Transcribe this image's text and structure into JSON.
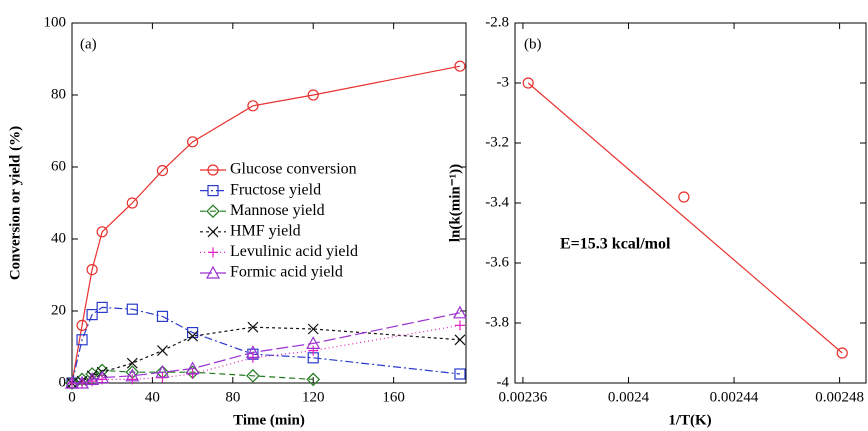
{
  "chart_data": [
    {
      "type": "line",
      "title": "(a)",
      "xlabel": "Time (min)",
      "ylabel": "Conversion or yield (%)",
      "xlim": [
        0,
        196
      ],
      "xticks": [
        0,
        40,
        80,
        120,
        160
      ],
      "ylim": [
        0,
        100
      ],
      "yticks": [
        0,
        20,
        40,
        60,
        80,
        100
      ],
      "series": [
        {
          "name": "Glucose conversion",
          "color": "#e8312e",
          "marker": "circle",
          "dash": "none",
          "x": [
            0,
            5,
            10,
            15,
            30,
            45,
            60,
            90,
            120,
            193
          ],
          "values": [
            0,
            16,
            31.5,
            42,
            50,
            59,
            67,
            77,
            80,
            88
          ]
        },
        {
          "name": "Fructose yield",
          "color": "#2b3bcc",
          "marker": "square",
          "dash": "8 3 2 3",
          "x": [
            0,
            5,
            10,
            15,
            30,
            45,
            60,
            90,
            120,
            193
          ],
          "values": [
            0,
            12,
            19,
            21,
            20.5,
            18.5,
            14,
            8,
            7,
            2.5
          ]
        },
        {
          "name": "Mannose yield",
          "color": "#1f7a1f",
          "marker": "diamond",
          "dash": "6 4",
          "x": [
            0,
            5,
            10,
            15,
            30,
            45,
            60,
            90,
            120
          ],
          "values": [
            0,
            1,
            2.5,
            3.5,
            3,
            3,
            3,
            2,
            1
          ]
        },
        {
          "name": "HMF yield",
          "color": "#111111",
          "marker": "cross",
          "dash": "3 3",
          "x": [
            0,
            5,
            10,
            15,
            30,
            45,
            60,
            90,
            120,
            193
          ],
          "values": [
            0,
            0.5,
            2,
            3,
            5.5,
            9,
            13,
            15.5,
            15,
            12
          ]
        },
        {
          "name": "Levulinic acid yield",
          "color": "#e020c0",
          "marker": "plus",
          "dash": "1 3",
          "x": [
            0,
            5,
            10,
            15,
            30,
            45,
            60,
            90,
            120,
            193
          ],
          "values": [
            0,
            0,
            0.5,
            1,
            1,
            1.5,
            2.5,
            7,
            9,
            16
          ]
        },
        {
          "name": "Formic acid yield",
          "color": "#9a30d0",
          "marker": "triangle",
          "dash": "12 4",
          "x": [
            0,
            5,
            10,
            15,
            30,
            45,
            60,
            90,
            120,
            193
          ],
          "values": [
            0,
            0,
            1,
            1.5,
            2,
            3,
            4,
            8.5,
            11,
            19.5
          ]
        }
      ]
    },
    {
      "type": "scatter",
      "title": "(b)",
      "xlabel": "1/T(K)",
      "ylabel": "ln(k(min⁻¹))",
      "annotation": "E=15.3 kcal/mol",
      "xlim": [
        0.002357,
        0.00249
      ],
      "xticks": [
        0.00236,
        0.0024,
        0.00244,
        0.00248
      ],
      "ylim": [
        -4,
        -2.8
      ],
      "yticks": [
        -4,
        -3.8,
        -3.6,
        -3.4,
        -3.2,
        -3,
        -2.8
      ],
      "series": [
        {
          "color": "#e8312e",
          "x": [
            0.002362,
            0.002421,
            0.002481
          ],
          "values": [
            -3.0,
            -3.38,
            -3.9
          ]
        }
      ]
    }
  ]
}
